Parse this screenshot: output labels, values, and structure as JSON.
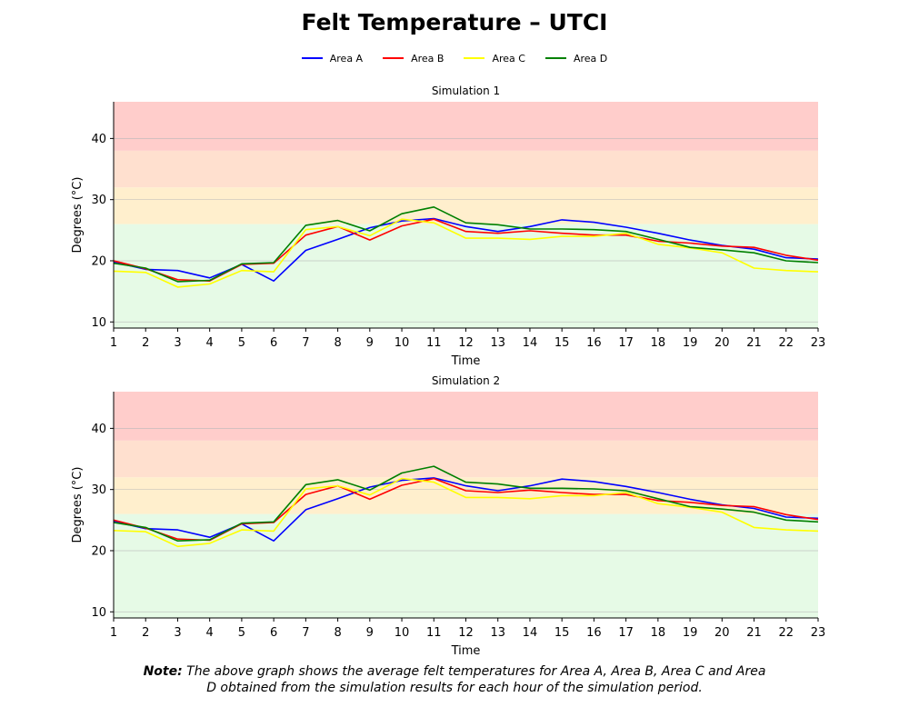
{
  "title": "Felt Temperature – UTCI",
  "note": {
    "label": "Note:",
    "text": "The above graph shows the average felt temperatures for Area A, Area B, Area C and Area D obtained from the simulation results for each hour of the simulation period."
  },
  "chart_data": [
    {
      "type": "line",
      "title": "Simulation 1",
      "xlabel": "Time",
      "ylabel": "Degrees (°C)",
      "x": [
        1,
        2,
        3,
        4,
        5,
        6,
        7,
        8,
        9,
        10,
        11,
        12,
        13,
        14,
        15,
        16,
        17,
        18,
        19,
        20,
        21,
        22,
        23
      ],
      "xlim": [
        1,
        23
      ],
      "ylim": [
        9,
        46
      ],
      "yticks": [
        10,
        20,
        30,
        40
      ],
      "grid": true,
      "legend": "top-center",
      "bands": [
        {
          "from": 9,
          "to": 26,
          "color": "#e6fae6"
        },
        {
          "from": 26,
          "to": 32,
          "color": "#ffefcd"
        },
        {
          "from": 32,
          "to": 38,
          "color": "#ffe0cf"
        },
        {
          "from": 38,
          "to": 46,
          "color": "#ffcdcb"
        }
      ],
      "series": [
        {
          "name": "Area A",
          "color": "#0000ff",
          "values": [
            19.8,
            18.6,
            18.4,
            17.2,
            19.4,
            16.7,
            21.7,
            23.5,
            25.4,
            26.5,
            26.9,
            25.6,
            24.8,
            25.6,
            26.7,
            26.3,
            25.5,
            24.5,
            23.4,
            22.5,
            21.9,
            20.5,
            20.3
          ]
        },
        {
          "name": "Area B",
          "color": "#ff0000",
          "values": [
            20.0,
            18.7,
            16.9,
            16.7,
            19.4,
            19.6,
            24.2,
            25.6,
            23.4,
            25.7,
            26.8,
            24.8,
            24.5,
            24.9,
            24.5,
            24.2,
            24.2,
            23.2,
            22.9,
            22.4,
            22.2,
            20.9,
            20.1
          ]
        },
        {
          "name": "Area C",
          "color": "#ffff00",
          "values": [
            18.3,
            18.1,
            15.7,
            16.2,
            18.4,
            18.2,
            25.1,
            25.6,
            24.1,
            26.8,
            26.2,
            23.7,
            23.7,
            23.5,
            24.0,
            24.0,
            24.5,
            22.7,
            22.1,
            21.3,
            18.8,
            18.4,
            18.2
          ]
        },
        {
          "name": "Area D",
          "color": "#008000",
          "values": [
            19.6,
            18.8,
            16.6,
            16.8,
            19.5,
            19.7,
            25.8,
            26.6,
            24.9,
            27.7,
            28.8,
            26.2,
            25.9,
            25.2,
            25.2,
            25.1,
            24.8,
            23.5,
            22.2,
            21.8,
            21.3,
            20.0,
            19.7
          ]
        }
      ]
    },
    {
      "type": "line",
      "title": "Simulation 2",
      "xlabel": "Time",
      "ylabel": "Degrees (°C)",
      "x": [
        1,
        2,
        3,
        4,
        5,
        6,
        7,
        8,
        9,
        10,
        11,
        12,
        13,
        14,
        15,
        16,
        17,
        18,
        19,
        20,
        21,
        22,
        23
      ],
      "xlim": [
        1,
        23
      ],
      "ylim": [
        9,
        46
      ],
      "yticks": [
        10,
        20,
        30,
        40
      ],
      "grid": true,
      "bands": [
        {
          "from": 9,
          "to": 26,
          "color": "#e6fae6"
        },
        {
          "from": 26,
          "to": 32,
          "color": "#ffefcd"
        },
        {
          "from": 32,
          "to": 38,
          "color": "#ffe0cf"
        },
        {
          "from": 38,
          "to": 46,
          "color": "#ffcdcb"
        }
      ],
      "series": [
        {
          "name": "Area A",
          "color": "#0000ff",
          "values": [
            24.8,
            23.6,
            23.4,
            22.2,
            24.4,
            21.6,
            26.7,
            28.5,
            30.4,
            31.5,
            31.9,
            30.6,
            29.8,
            30.6,
            31.7,
            31.3,
            30.5,
            29.5,
            28.4,
            27.5,
            26.9,
            25.5,
            25.3
          ]
        },
        {
          "name": "Area B",
          "color": "#ff0000",
          "values": [
            25.0,
            23.7,
            21.9,
            21.7,
            24.4,
            24.6,
            29.2,
            30.6,
            28.4,
            30.7,
            31.8,
            29.8,
            29.5,
            29.9,
            29.5,
            29.2,
            29.2,
            28.2,
            27.9,
            27.4,
            27.2,
            25.9,
            25.1
          ]
        },
        {
          "name": "Area C",
          "color": "#ffff00",
          "values": [
            23.3,
            23.1,
            20.7,
            21.2,
            23.4,
            23.2,
            30.1,
            30.6,
            29.1,
            31.8,
            31.2,
            28.7,
            28.7,
            28.5,
            29.0,
            29.0,
            29.5,
            27.7,
            27.1,
            26.3,
            23.8,
            23.4,
            23.2
          ]
        },
        {
          "name": "Area D",
          "color": "#008000",
          "values": [
            24.6,
            23.8,
            21.6,
            21.8,
            24.5,
            24.7,
            30.8,
            31.6,
            29.9,
            32.7,
            33.8,
            31.2,
            30.9,
            30.2,
            30.2,
            30.1,
            29.8,
            28.5,
            27.2,
            26.8,
            26.3,
            25.0,
            24.7
          ]
        }
      ]
    }
  ]
}
